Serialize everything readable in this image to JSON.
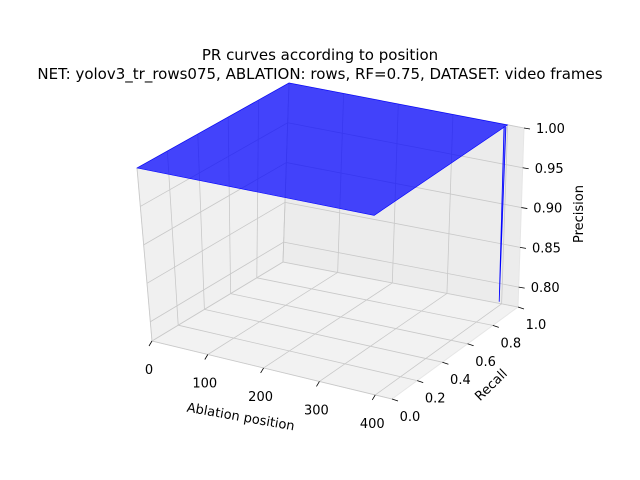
{
  "chart_data": {
    "type": "surface-3d",
    "title": "PR curves according to position",
    "subtitle": "NET: yolov3_tr_rows075, ABLATION: rows, RF=0.75, DATASET: video frames",
    "xlabel": "Ablation position",
    "ylabel": "Recall",
    "zlabel": "Precision",
    "x_ticks": [
      "0",
      "100",
      "200",
      "300",
      "400"
    ],
    "y_ticks": [
      "0.0",
      "0.2",
      "0.4",
      "0.6",
      "0.8",
      "1.0"
    ],
    "z_ticks": [
      "0.80",
      "0.85",
      "0.90",
      "0.95",
      "1.00"
    ],
    "xlim": [
      0,
      430
    ],
    "ylim": [
      0,
      1.0
    ],
    "zlim": [
      0.775,
      1.0
    ],
    "grid": true,
    "surface": {
      "color": "#0000ff",
      "opacity": 0.72,
      "x_range": [
        0,
        400
      ],
      "recall_range": [
        0.0,
        1.0
      ],
      "precision": 1.0,
      "dip": {
        "ablation_position": 400,
        "recall": 0.98,
        "precision_min": 0.78
      }
    }
  }
}
